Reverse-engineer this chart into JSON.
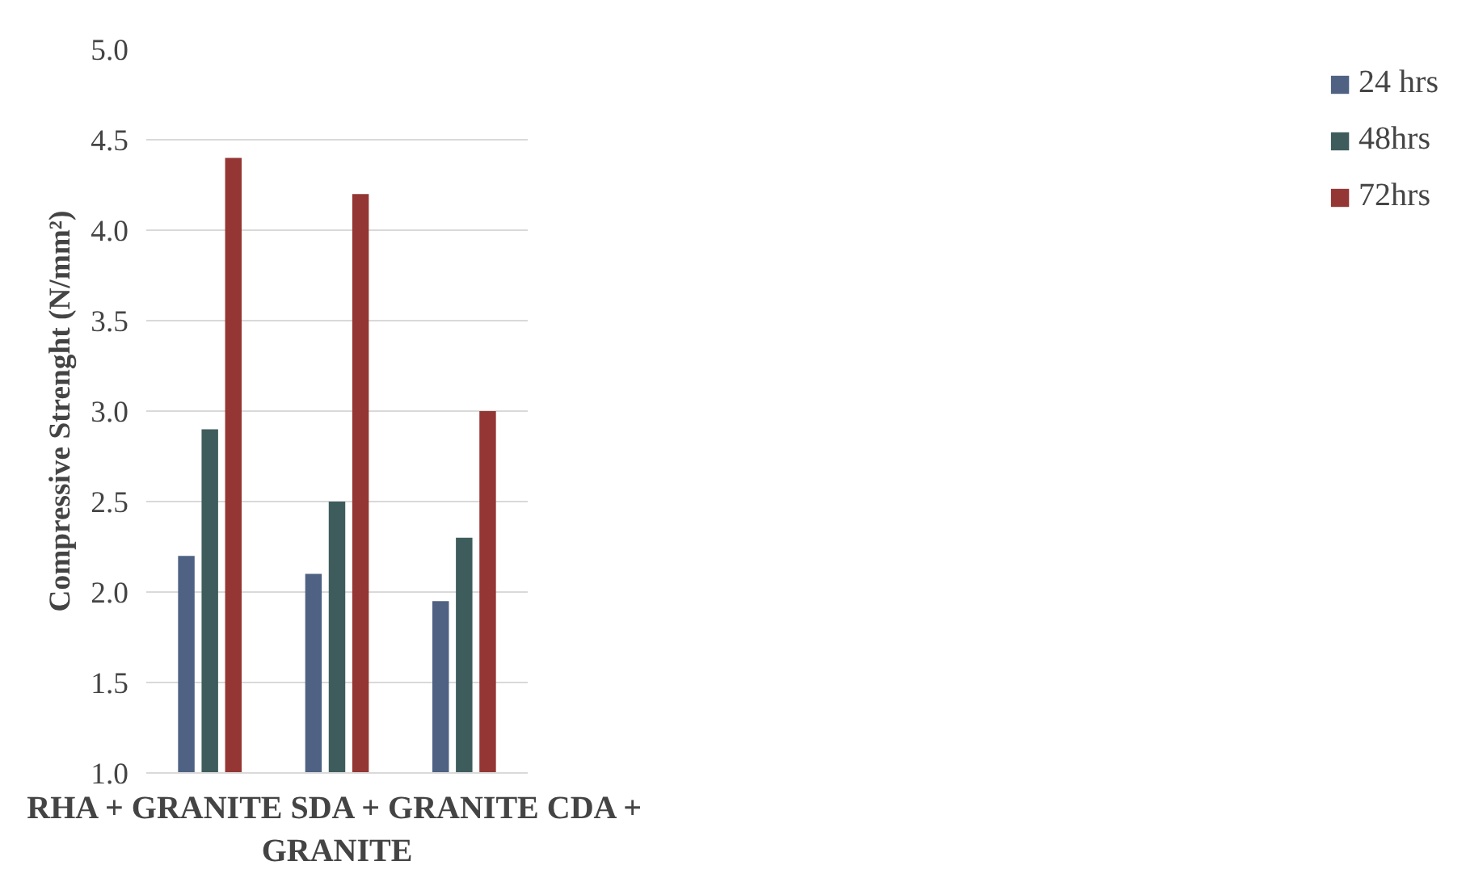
{
  "chart_data": {
    "type": "bar",
    "ylabel": "Compressive Strenght (N/mm²)",
    "xlabel": "RHA + GRANITE SDA + GRANITE CDA +\nGRANITE",
    "categories": [
      null,
      null,
      null
    ],
    "series": [
      {
        "name": "24 hrs",
        "color": "#4f6284",
        "values": [
          2.2,
          2.1,
          1.95
        ]
      },
      {
        "name": "48hrs",
        "color": "#3f5c5c",
        "values": [
          2.9,
          2.5,
          2.3
        ]
      },
      {
        "name": "72hrs",
        "color": "#943634",
        "values": [
          4.4,
          4.2,
          3.0
        ]
      }
    ],
    "ylim": [
      1.0,
      5.0
    ],
    "yticks": [
      {
        "value": 1.0,
        "label": "1.0"
      },
      {
        "value": 1.5,
        "label": "1.5"
      },
      {
        "value": 2.0,
        "label": "2.0"
      },
      {
        "value": 2.5,
        "label": "2.5"
      },
      {
        "value": 3.0,
        "label": "3.0"
      },
      {
        "value": 3.5,
        "label": "3.5"
      },
      {
        "value": 4.0,
        "label": "4.0"
      },
      {
        "value": 4.5,
        "label": "4.5"
      },
      {
        "value": 5.0,
        "label": "5.0"
      }
    ],
    "grid": "y",
    "legend": "right"
  }
}
